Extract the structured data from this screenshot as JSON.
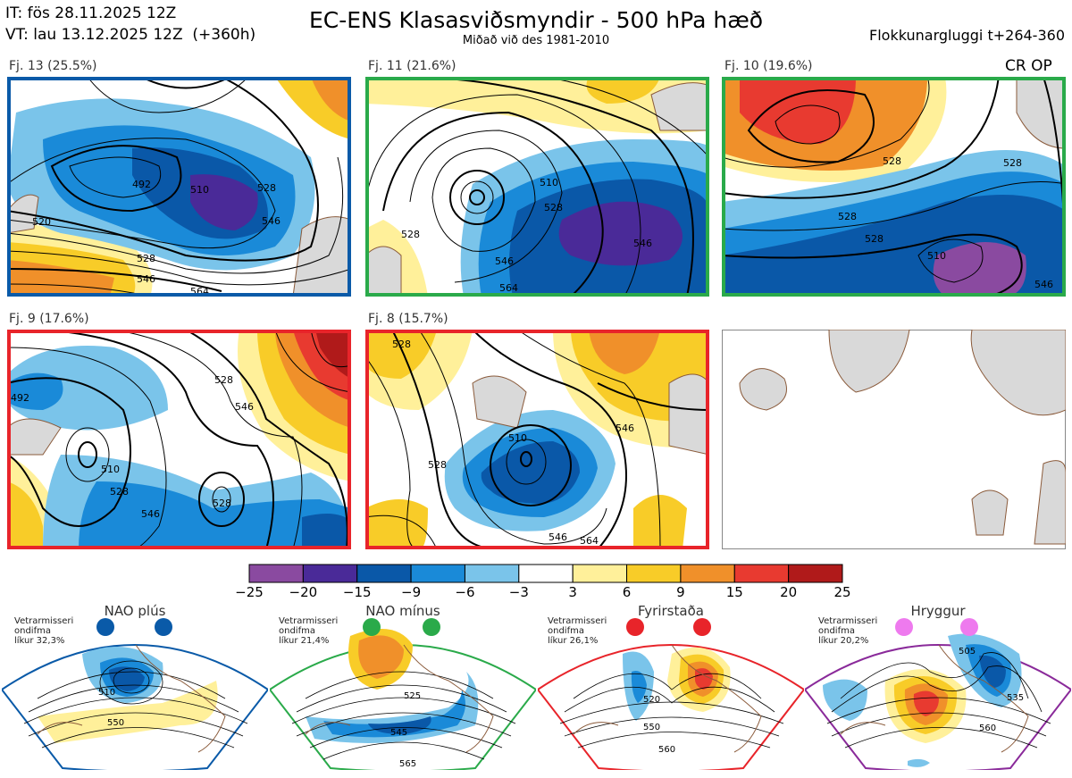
{
  "header": {
    "init_time": "IT: fös 28.11.2025 12Z",
    "valid_time": "VT: lau 13.12.2025 12Z  (+360h)",
    "title": "EC-ENS Klasasviðsmyndir - 500 hPa hæð",
    "subtitle": "Miðað við des 1981-2010",
    "window": "Flokkunargluggi t+264-360",
    "cr_op": "CR OP"
  },
  "colors": {
    "frame_blue": "#0a5aa8",
    "frame_green": "#2aaa4a",
    "frame_red": "#e8242a",
    "frame_purple": "#8a2a9a",
    "land": "#d9d9d9",
    "coast": "#8a5a3a"
  },
  "panels": [
    {
      "label": "Fj. 13 (25.5%)",
      "frame": "blue",
      "regime": "NAO plús",
      "contour_labels": [
        "492",
        "510",
        "528",
        "546",
        "520",
        "528",
        "546",
        "564"
      ]
    },
    {
      "label": "Fj. 11 (21.6%)",
      "frame": "green",
      "regime": "NAO mínus",
      "contour_labels": [
        "510",
        "528",
        "546",
        "564",
        "528",
        "546"
      ]
    },
    {
      "label": "Fj. 10 (19.6%)",
      "frame": "green",
      "regime": "NAO mínus",
      "contour_labels": [
        "528",
        "528",
        "528",
        "510",
        "528",
        "546"
      ]
    },
    {
      "label": "Fj. 9 (17.6%)",
      "frame": "red",
      "regime": "Fyrirstaða",
      "contour_labels": [
        "492",
        "510",
        "528",
        "546",
        "528",
        "546",
        "528"
      ]
    },
    {
      "label": "Fj. 8 (15.7%)",
      "frame": "red",
      "regime": "Fyrirstaða",
      "contour_labels": [
        "528",
        "510",
        "546",
        "528",
        "546",
        "564"
      ]
    }
  ],
  "colorbar": {
    "ticks": [
      "−25",
      "−20",
      "−15",
      "−9",
      "−6",
      "−3",
      "3",
      "6",
      "9",
      "15",
      "20",
      "25"
    ],
    "colors": [
      "#8a4aa0",
      "#4a2a98",
      "#0a58a8",
      "#1a8ad8",
      "#7ac4ea",
      "#ffffff",
      "#fff09a",
      "#f8cc28",
      "#f0902a",
      "#e83a30",
      "#b01a1a"
    ]
  },
  "regimes": [
    {
      "title": "NAO plús",
      "note_l1": "Vetrarmisseri",
      "note_l2": "ondifma",
      "note_l3": "líkur 32,3%",
      "color": "#0a5aa8",
      "contour_labels": [
        "510",
        "550"
      ]
    },
    {
      "title": "NAO mínus",
      "note_l1": "Vetrarmisseri",
      "note_l2": "ondifma",
      "note_l3": "líkur 21,4%",
      "color": "#2aaa4a",
      "contour_labels": [
        "525",
        "545",
        "565"
      ]
    },
    {
      "title": "Fyrirstaða",
      "note_l1": "Vetrarmisseri",
      "note_l2": "ondifma",
      "note_l3": "líkur 26,1%",
      "color": "#e8242a",
      "contour_labels": [
        "520",
        "550",
        "560"
      ]
    },
    {
      "title": "Hryggur",
      "note_l1": "Vetrarmisseri",
      "note_l2": "ondifma",
      "note_l3": "líkur 20,2%",
      "color": "#8a2a9a",
      "contour_labels": [
        "505",
        "535",
        "560"
      ]
    }
  ],
  "chart_data": [
    {
      "type": "heatmap",
      "title": "Fj. 13 (25.5%)",
      "quantity": "500 hPa height (contours, dam) and anomaly (shading)"
    },
    {
      "type": "heatmap",
      "title": "Fj. 11 (21.6%)"
    },
    {
      "type": "heatmap",
      "title": "Fj. 10 (19.6%)"
    },
    {
      "type": "heatmap",
      "title": "Fj. 9 (17.6%)"
    },
    {
      "type": "heatmap",
      "title": "Fj. 8 (15.7%)"
    }
  ]
}
